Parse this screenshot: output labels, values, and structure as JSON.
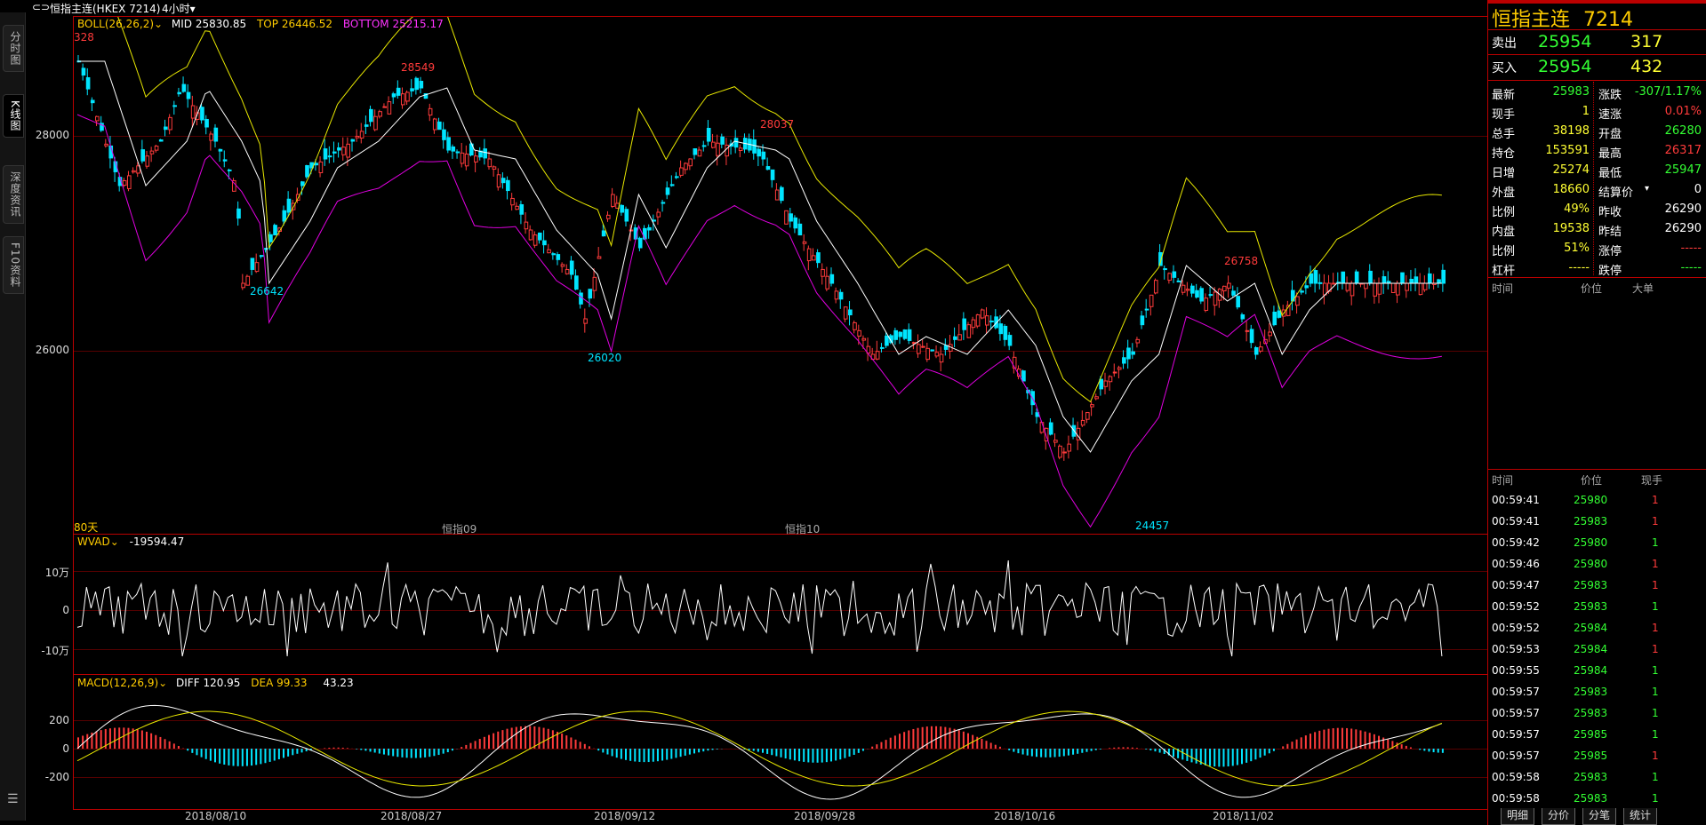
{
  "topbar": {
    "title": "恒指主连(HKEX 7214)",
    "period": "4小时",
    "period_arrow": "▾"
  },
  "left_tabs": [
    "分时图",
    "K线图",
    "深度资讯",
    "F10资料"
  ],
  "main": {
    "boll": {
      "label": "BOLL(26,26,2)",
      "mid_label": "MID",
      "mid": "25830.85",
      "top_label": "TOP",
      "top": "26446.52",
      "bottom_label": "BOTTOM",
      "bottom": "25215.17"
    },
    "y_labels": [
      "28000",
      "26000"
    ],
    "price_marks": [
      "328",
      "28549",
      "26642",
      "26020",
      "28037",
      "26758",
      "24457"
    ],
    "days_label": "80天",
    "contract_labels": [
      "恒指09",
      "恒指10"
    ],
    "wvad": {
      "label": "WVAD",
      "value": "-19594.47",
      "y_labels": [
        "10万",
        "0",
        "-10万"
      ]
    },
    "macd": {
      "label": "MACD(12,26,9)",
      "diff_label": "DIFF",
      "diff": "120.95",
      "dea_label": "DEA",
      "dea": "99.33",
      "macd": "43.23",
      "y_labels": [
        "200",
        "0",
        "-200"
      ]
    },
    "x_labels": [
      "2018/08/10",
      "2018/08/27",
      "2018/09/12",
      "2018/09/28",
      "2018/10/16",
      "2018/11/02"
    ]
  },
  "quote": {
    "name": "恒指主连",
    "code": "7214",
    "sell_label": "卖出",
    "sell_price": "25954",
    "sell_vol": "317",
    "buy_label": "买入",
    "buy_price": "25954",
    "buy_vol": "432",
    "fields": [
      [
        "最新",
        "25983",
        "涨跌",
        "-307/1.17%"
      ],
      [
        "现手",
        "1",
        "速涨",
        "0.01%"
      ],
      [
        "总手",
        "38198",
        "开盘",
        "26280"
      ],
      [
        "持仓",
        "153591",
        "最高",
        "26317"
      ],
      [
        "日增",
        "25274",
        "最低",
        "25947"
      ],
      [
        "外盘",
        "18660",
        "结算价",
        "0"
      ],
      [
        "比例",
        "49%",
        "昨收",
        "26290"
      ],
      [
        "内盘",
        "19538",
        "昨结",
        "26290"
      ],
      [
        "比例",
        "51%",
        "涨停",
        "-----"
      ],
      [
        "杠杆",
        "-----",
        "跌停",
        "-----"
      ]
    ],
    "big_order_headers": [
      "时间",
      "价位",
      "大单"
    ],
    "tick_headers": [
      "时间",
      "价位",
      "现手"
    ],
    "ticks": [
      [
        "00:59:41",
        "25980",
        "1"
      ],
      [
        "00:59:41",
        "25983",
        "1"
      ],
      [
        "00:59:42",
        "25980",
        "1"
      ],
      [
        "00:59:46",
        "25980",
        "1"
      ],
      [
        "00:59:47",
        "25983",
        "1"
      ],
      [
        "00:59:52",
        "25983",
        "1"
      ],
      [
        "00:59:52",
        "25984",
        "1"
      ],
      [
        "00:59:53",
        "25984",
        "1"
      ],
      [
        "00:59:55",
        "25984",
        "1"
      ],
      [
        "00:59:57",
        "25983",
        "1"
      ],
      [
        "00:59:57",
        "25983",
        "1"
      ],
      [
        "00:59:57",
        "25985",
        "1"
      ],
      [
        "00:59:57",
        "25985",
        "1"
      ],
      [
        "00:59:58",
        "25983",
        "1"
      ],
      [
        "00:59:58",
        "25983",
        "1"
      ]
    ],
    "bottom_tabs": [
      "明细",
      "分价",
      "分笔",
      "统计"
    ]
  },
  "colors": {
    "up": "#ff3b3b",
    "down": "#00e5ff",
    "boll_top": "#e8e800",
    "boll_bottom": "#e000e0",
    "mid": "#ffffff",
    "grid": "#550000"
  }
}
